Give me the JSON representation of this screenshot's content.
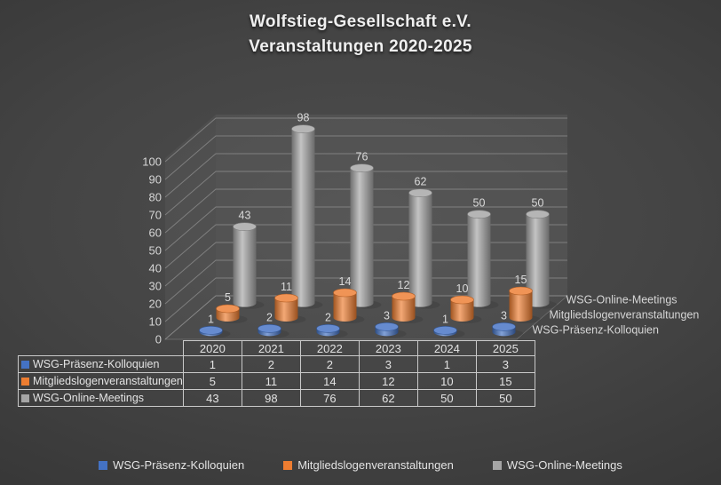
{
  "title": {
    "line1": "Wolfstieg-Gesellschaft e.V.",
    "line2": "Veranstaltungen 2020-2025"
  },
  "chart_data": {
    "type": "bar",
    "subtype": "3d-cylinder",
    "title": "Wolfstieg-Gesellschaft e.V. Veranstaltungen 2020-2025",
    "categories": [
      "2020",
      "2021",
      "2022",
      "2023",
      "2024",
      "2025"
    ],
    "series": [
      {
        "name": "WSG-Präsenz-Kolloquien",
        "color": "#4472C4",
        "values": [
          1,
          2,
          2,
          3,
          1,
          3
        ]
      },
      {
        "name": "Mitgliedslogenveranstaltungen",
        "color": "#ED7D31",
        "values": [
          5,
          11,
          14,
          12,
          10,
          15
        ]
      },
      {
        "name": "WSG-Online-Meetings",
        "color": "#A5A5A5",
        "values": [
          43,
          98,
          76,
          62,
          50,
          50
        ]
      }
    ],
    "xlabel": "",
    "ylabel": "",
    "ylim": [
      0,
      100
    ],
    "yticks": [
      0,
      10,
      20,
      30,
      40,
      50,
      60,
      70,
      80,
      90,
      100
    ],
    "grid": true,
    "data_labels": true,
    "data_table": true,
    "legend_position": "bottom"
  },
  "colors": {
    "background_center": "#4e4e4e",
    "background_edge": "#252525",
    "gridline": "#909090",
    "text": "#dadada",
    "table_border": "#c9c9c9"
  }
}
